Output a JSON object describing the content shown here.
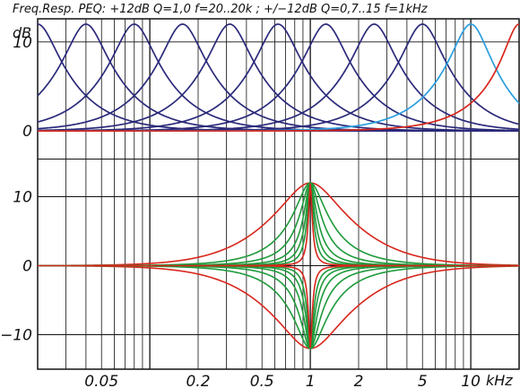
{
  "chart_data": {
    "type": "line",
    "title": "Freq.Resp. PEQ: +12dB Q=1,0   f=20..20k ; +/−12dB Q=0,7..15   f=1kHz",
    "ylabel": "dB",
    "xlabel": "kHz",
    "xscale": "log",
    "xlim_khz": [
      0.02,
      20
    ],
    "grid": true,
    "x_tick_labels": [
      {
        "value": 0.05,
        "label": "0.05"
      },
      {
        "value": 0.2,
        "label": "0.2"
      },
      {
        "value": 0.5,
        "label": "0.5"
      },
      {
        "value": 1,
        "label": "1"
      },
      {
        "value": 2,
        "label": "2"
      },
      {
        "value": 5,
        "label": "5"
      },
      {
        "value": 10,
        "label": "10"
      }
    ],
    "panels": [
      {
        "name": "upper",
        "ylim_db": [
          -1.2,
          12.6
        ],
        "y_tick_labels": [
          {
            "value": 0,
            "label": "0"
          },
          {
            "value": 10,
            "label": "10"
          }
        ],
        "peq_gain_db": 12,
        "peq_q": 1.0,
        "center_freqs_khz": [
          0.02,
          0.04,
          0.08,
          0.16,
          0.315,
          0.63,
          1.25,
          2.5,
          5,
          10,
          20
        ],
        "curve_colors": [
          "#2b2a7a",
          "#2b2a7a",
          "#2b2a7a",
          "#2b2a7a",
          "#2b2a7a",
          "#2b2a7a",
          "#2b2a7a",
          "#2b2a7a",
          "#2b2a7a",
          "#2a9ee0",
          "#d8261c"
        ]
      },
      {
        "name": "lower",
        "ylim_db": [
          -15,
          15
        ],
        "y_tick_labels": [
          {
            "value": -10,
            "label": "−10"
          },
          {
            "value": 0,
            "label": "0"
          },
          {
            "value": 10,
            "label": "10"
          }
        ],
        "peq_center_khz": 1,
        "peq_gains_db": [
          12,
          -12
        ],
        "peq_q_values": [
          0.7,
          1.5,
          2.5,
          4,
          6,
          9,
          15
        ],
        "q_colors": [
          "#d8261c",
          "#1e9a3a",
          "#1e9a3a",
          "#1e9a3a",
          "#1e9a3a",
          "#1e9a3a",
          "#d8261c"
        ]
      }
    ]
  }
}
